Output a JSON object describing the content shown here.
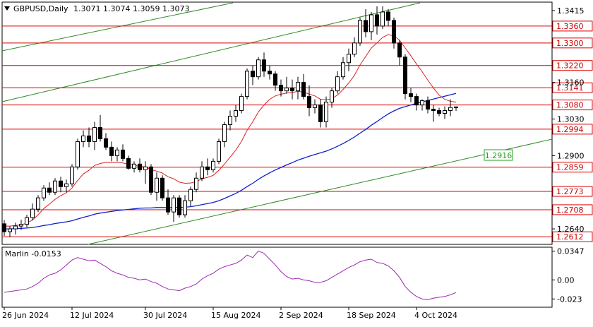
{
  "header": {
    "symbol": "GBPUSD,Daily",
    "ohlc": "1.3071 1.3074 1.3059 1.3073"
  },
  "colors": {
    "axis": "#000000",
    "level": "#dd0000",
    "level_text": "#cc0000",
    "ma_fast": "#dd2222",
    "ma_slow": "#1020cc",
    "channel": "#2e8b22",
    "channel_label": "#20a020",
    "oscillator": "#9c27b0",
    "candle_bull_fill": "#ffffff",
    "candle_bear_fill": "#000000"
  },
  "chart_data": [
    {
      "type": "candlestick",
      "title": "GBPUSD,Daily",
      "ylim": [
        1.2585,
        1.3445
      ],
      "y_ticks": [
        1.3415,
        1.316,
        1.303,
        1.29,
        1.264
      ],
      "grid": false,
      "horizontal_levels": [
        1.336,
        1.33,
        1.322,
        1.3141,
        1.308,
        1.2994,
        1.2859,
        1.2773,
        1.2708,
        1.2612
      ],
      "channel_label": "1.2916",
      "x_labels": [
        "26 Jun 2024",
        "12 Jul 2024",
        "30 Jul 2024",
        "15 Aug 2024",
        "2 Sep 2024",
        "18 Sep 2024",
        "4 Oct 2024"
      ],
      "x_label_index": [
        0,
        12,
        25,
        37,
        49,
        61,
        73
      ],
      "candles": [
        [
          1.2658,
          1.2671,
          1.2615,
          1.263
        ],
        [
          1.263,
          1.265,
          1.261,
          1.264
        ],
        [
          1.264,
          1.2662,
          1.262,
          1.265
        ],
        [
          1.265,
          1.2672,
          1.2636,
          1.2656
        ],
        [
          1.2656,
          1.269,
          1.2645,
          1.268
        ],
        [
          1.268,
          1.273,
          1.267,
          1.271
        ],
        [
          1.271,
          1.276,
          1.27,
          1.275
        ],
        [
          1.275,
          1.2795,
          1.274,
          1.2785
        ],
        [
          1.2785,
          1.2805,
          1.276,
          1.277
        ],
        [
          1.277,
          1.282,
          1.276,
          1.281
        ],
        [
          1.281,
          1.2825,
          1.277,
          1.279
        ],
        [
          1.279,
          1.2815,
          1.277,
          1.28
        ],
        [
          1.28,
          1.287,
          1.279,
          1.286
        ],
        [
          1.286,
          1.296,
          1.285,
          1.295
        ],
        [
          1.295,
          1.299,
          1.293,
          1.297
        ],
        [
          1.297,
          1.3,
          1.293,
          1.295
        ],
        [
          1.295,
          1.302,
          1.292,
          1.3
        ],
        [
          1.3,
          1.3044,
          1.295,
          1.296
        ],
        [
          1.296,
          1.298,
          1.292,
          1.293
        ],
        [
          1.293,
          1.295,
          1.288,
          1.29
        ],
        [
          1.29,
          1.293,
          1.288,
          1.292
        ],
        [
          1.292,
          1.294,
          1.288,
          1.289
        ],
        [
          1.289,
          1.29,
          1.285,
          1.2855
        ],
        [
          1.2855,
          1.288,
          1.284,
          1.287
        ],
        [
          1.287,
          1.289,
          1.284,
          1.285
        ],
        [
          1.285,
          1.288,
          1.28,
          1.286
        ],
        [
          1.286,
          1.287,
          1.276,
          1.277
        ],
        [
          1.277,
          1.284,
          1.274,
          1.282
        ],
        [
          1.282,
          1.283,
          1.274,
          1.275
        ],
        [
          1.275,
          1.278,
          1.269,
          1.27
        ],
        [
          1.27,
          1.276,
          1.2665,
          1.275
        ],
        [
          1.275,
          1.276,
          1.268,
          1.269
        ],
        [
          1.269,
          1.276,
          1.268,
          1.274
        ],
        [
          1.274,
          1.279,
          1.272,
          1.278
        ],
        [
          1.278,
          1.284,
          1.277,
          1.282
        ],
        [
          1.282,
          1.288,
          1.281,
          1.286
        ],
        [
          1.286,
          1.289,
          1.283,
          1.285
        ],
        [
          1.285,
          1.289,
          1.284,
          1.288
        ],
        [
          1.288,
          1.296,
          1.287,
          1.295
        ],
        [
          1.295,
          1.302,
          1.293,
          1.301
        ],
        [
          1.301,
          1.306,
          1.299,
          1.304
        ],
        [
          1.304,
          1.308,
          1.302,
          1.306
        ],
        [
          1.306,
          1.312,
          1.305,
          1.311
        ],
        [
          1.311,
          1.321,
          1.31,
          1.32
        ],
        [
          1.32,
          1.322,
          1.315,
          1.318
        ],
        [
          1.318,
          1.325,
          1.317,
          1.324
        ],
        [
          1.324,
          1.3266,
          1.318,
          1.32
        ],
        [
          1.32,
          1.322,
          1.317,
          1.319
        ],
        [
          1.319,
          1.32,
          1.313,
          1.315
        ],
        [
          1.315,
          1.317,
          1.311,
          1.313
        ],
        [
          1.313,
          1.318,
          1.312,
          1.314
        ],
        [
          1.314,
          1.317,
          1.31,
          1.313
        ],
        [
          1.313,
          1.318,
          1.31,
          1.316
        ],
        [
          1.316,
          1.319,
          1.31,
          1.311
        ],
        [
          1.311,
          1.315,
          1.304,
          1.307
        ],
        [
          1.307,
          1.31,
          1.305,
          1.308
        ],
        [
          1.308,
          1.31,
          1.3,
          1.302
        ],
        [
          1.302,
          1.311,
          1.3,
          1.309
        ],
        [
          1.309,
          1.314,
          1.307,
          1.313
        ],
        [
          1.313,
          1.32,
          1.312,
          1.318
        ],
        [
          1.318,
          1.325,
          1.317,
          1.323
        ],
        [
          1.323,
          1.328,
          1.32,
          1.326
        ],
        [
          1.326,
          1.332,
          1.325,
          1.33
        ],
        [
          1.33,
          1.339,
          1.329,
          1.338
        ],
        [
          1.338,
          1.342,
          1.332,
          1.334
        ],
        [
          1.334,
          1.341,
          1.331,
          1.34
        ],
        [
          1.34,
          1.343,
          1.333,
          1.336
        ],
        [
          1.336,
          1.343,
          1.335,
          1.341
        ],
        [
          1.341,
          1.342,
          1.336,
          1.338
        ],
        [
          1.338,
          1.339,
          1.328,
          1.33
        ],
        [
          1.33,
          1.331,
          1.322,
          1.325
        ],
        [
          1.325,
          1.326,
          1.31,
          1.312
        ],
        [
          1.312,
          1.314,
          1.309,
          1.311
        ],
        [
          1.311,
          1.312,
          1.306,
          1.308
        ],
        [
          1.308,
          1.31,
          1.306,
          1.3095
        ],
        [
          1.3095,
          1.311,
          1.305,
          1.3065
        ],
        [
          1.3065,
          1.308,
          1.302,
          1.306
        ],
        [
          1.306,
          1.307,
          1.304,
          1.305
        ],
        [
          1.305,
          1.3075,
          1.303,
          1.306
        ],
        [
          1.306,
          1.31,
          1.304,
          1.3071
        ],
        [
          1.3071,
          1.3074,
          1.3059,
          1.3073
        ]
      ],
      "ma_fast": [
        1.265,
        1.265,
        1.2652,
        1.2655,
        1.266,
        1.2672,
        1.269,
        1.2712,
        1.2728,
        1.2745,
        1.2758,
        1.2768,
        1.2785,
        1.2812,
        1.2835,
        1.2848,
        1.2865,
        1.2872,
        1.2876,
        1.2875,
        1.2876,
        1.2874,
        1.2869,
        1.2866,
        1.2862,
        1.286,
        1.285,
        1.2845,
        1.2838,
        1.2825,
        1.2818,
        1.2806,
        1.2802,
        1.2803,
        1.2808,
        1.2818,
        1.2823,
        1.283,
        1.2848,
        1.287,
        1.2895,
        1.292,
        1.295,
        1.299,
        1.302,
        1.3055,
        1.308,
        1.31,
        1.3112,
        1.3118,
        1.3122,
        1.3124,
        1.3128,
        1.3126,
        1.3118,
        1.3112,
        1.31,
        1.3098,
        1.3102,
        1.3115,
        1.3135,
        1.3158,
        1.3185,
        1.3222,
        1.3252,
        1.3282,
        1.33,
        1.332,
        1.333,
        1.3325,
        1.331,
        1.3282,
        1.3255,
        1.3225,
        1.3198,
        1.3168,
        1.314,
        1.3115,
        1.31,
        1.3093,
        1.309
      ],
      "ma_slow": [
        1.264,
        1.264,
        1.2641,
        1.2642,
        1.2643,
        1.2645,
        1.2648,
        1.2652,
        1.2655,
        1.2659,
        1.2662,
        1.2665,
        1.2669,
        1.2675,
        1.2681,
        1.2686,
        1.2692,
        1.2696,
        1.2699,
        1.2702,
        1.2705,
        1.2707,
        1.2709,
        1.2711,
        1.2713,
        1.2714,
        1.2714,
        1.2716,
        1.2716,
        1.2715,
        1.2716,
        1.2716,
        1.2717,
        1.2719,
        1.2722,
        1.2726,
        1.273,
        1.2734,
        1.274,
        1.2748,
        1.2757,
        1.2766,
        1.2777,
        1.279,
        1.2802,
        1.2816,
        1.2828,
        1.2839,
        1.2849,
        1.2858,
        1.2867,
        1.2875,
        1.2884,
        1.2891,
        1.2898,
        1.2904,
        1.291,
        1.2916,
        1.2924,
        1.2933,
        1.2943,
        1.2954,
        1.2966,
        1.298,
        1.2993,
        1.3008,
        1.3021,
        1.3035,
        1.3048,
        1.3059,
        1.3068,
        1.3074,
        1.308,
        1.3086,
        1.3091,
        1.3096,
        1.3101,
        1.3106,
        1.3111,
        1.3116,
        1.3121
      ]
    },
    {
      "type": "line",
      "title": "Marlin -0.0153",
      "ylim": [
        -0.033,
        0.0395
      ],
      "y_ticks": [
        0.0347,
        0.0,
        -0.023
      ],
      "y_tick_labels": [
        "0.0347",
        "0.00",
        "-0.023"
      ],
      "series": [
        {
          "values": [
            -0.015,
            -0.014,
            -0.013,
            -0.012,
            -0.011,
            -0.008,
            -0.004,
            0.002,
            0.006,
            0.008,
            0.012,
            0.018,
            0.024,
            0.027,
            0.025,
            0.023,
            0.024,
            0.02,
            0.016,
            0.011,
            0.008,
            0.006,
            0.003,
            0.002,
            0.0,
            0.001,
            -0.002,
            -0.004,
            -0.008,
            -0.011,
            -0.012,
            -0.013,
            -0.01,
            -0.008,
            -0.005,
            0.001,
            0.005,
            0.008,
            0.013,
            0.016,
            0.018,
            0.02,
            0.024,
            0.03,
            0.027,
            0.035,
            0.032,
            0.025,
            0.018,
            0.01,
            0.004,
            0.001,
            0.002,
            0.0,
            -0.001,
            -0.003,
            -0.003,
            -0.001,
            0.003,
            0.007,
            0.011,
            0.015,
            0.018,
            0.022,
            0.024,
            0.025,
            0.021,
            0.02,
            0.017,
            0.011,
            0.003,
            -0.008,
            -0.015,
            -0.02,
            -0.023,
            -0.024,
            -0.022,
            -0.021,
            -0.02,
            -0.018,
            -0.0153
          ]
        }
      ]
    }
  ]
}
